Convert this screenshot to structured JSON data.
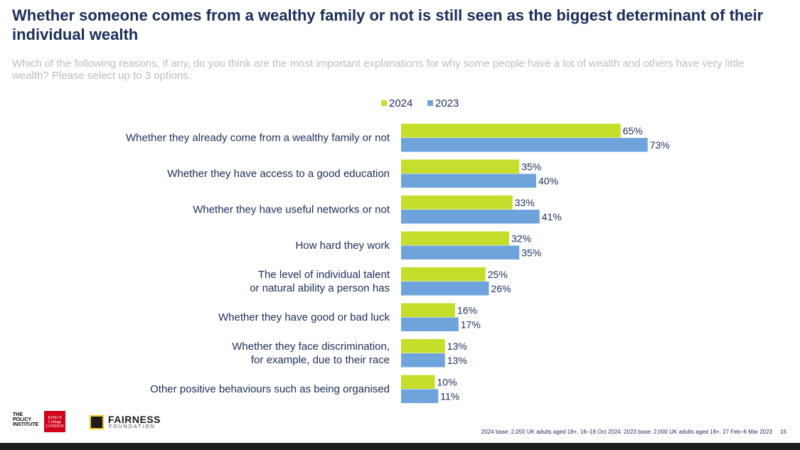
{
  "title": "Whether someone comes from a wealthy family or not is still seen as the biggest determinant of their individual wealth",
  "subtitle": "Which of the following reasons, if any, do you think are the most important explanations for why some people have a lot of wealth and others have very little wealth? Please select up to 3 options.",
  "colors": {
    "series_2024": "#c5dd2b",
    "series_2023": "#6ea3dc",
    "text": "#1b2d5b"
  },
  "chart_data": {
    "type": "bar",
    "orientation": "horizontal",
    "legend_position": "top",
    "grid": false,
    "xlim": [
      0,
      100
    ],
    "categories": [
      [
        "Whether they already come from a wealthy family or not"
      ],
      [
        "Whether they have access to a good education"
      ],
      [
        "Whether they have useful networks or not"
      ],
      [
        "How hard they work"
      ],
      [
        "The level of individual talent",
        "or natural ability a person has"
      ],
      [
        "Whether they have good or bad luck"
      ],
      [
        "Whether they face discrimination,",
        "for example, due to their race"
      ],
      [
        "Other positive behaviours such as being organised"
      ]
    ],
    "series": [
      {
        "name": "2024",
        "values": [
          65,
          35,
          33,
          32,
          25,
          16,
          13,
          10
        ],
        "labels": [
          "65%",
          "35%",
          "33%",
          "32%",
          "25%",
          "16%",
          "13%",
          "10%"
        ]
      },
      {
        "name": "2023",
        "values": [
          73,
          40,
          41,
          35,
          26,
          17,
          13,
          11
        ],
        "labels": [
          "73%",
          "40%",
          "41%",
          "35%",
          "26%",
          "17%",
          "13%",
          "11%"
        ]
      }
    ]
  },
  "logos": {
    "policy": "THE POLICY INSTITUTE",
    "kings": "KING'S College LONDON",
    "fairness": "FAIRNESS",
    "fairness_sub": "FOUNDATION"
  },
  "footnote": "2024 base: 2,050 UK adults aged 18+, 16–18 Oct 2024. 2023 base: 2,000 UK adults aged 18+, 27 Feb–6 Mar 2023",
  "page_number": "15"
}
